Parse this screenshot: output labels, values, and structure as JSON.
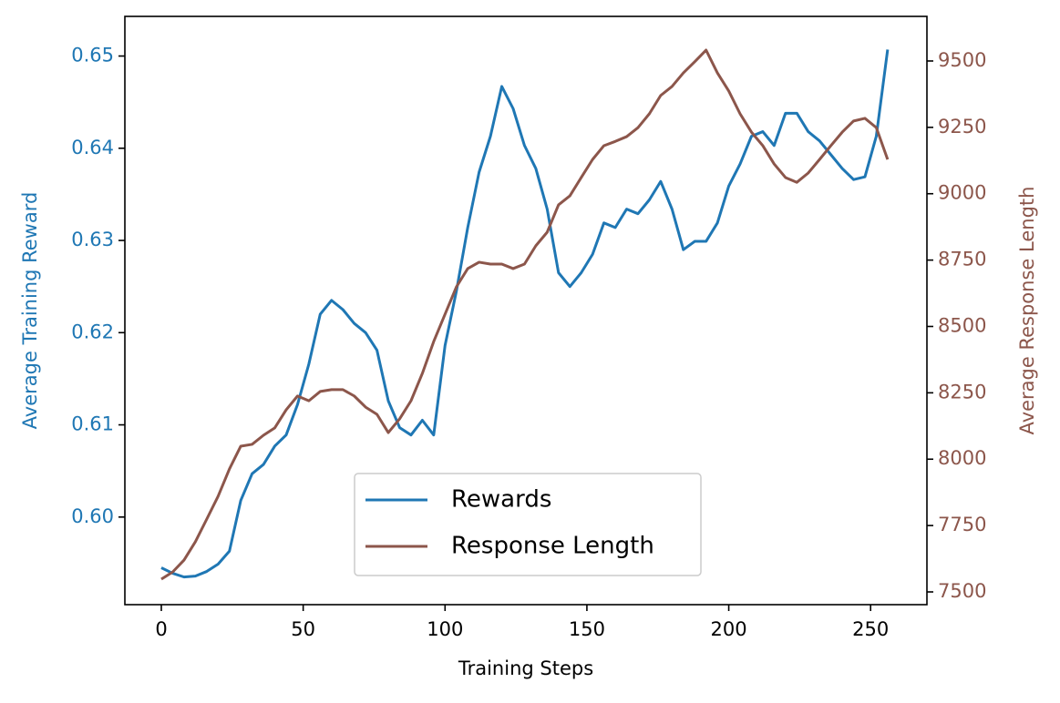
{
  "chart_data": {
    "type": "line",
    "x_label": "Training Steps",
    "y_label": "Average Training Reward",
    "y2_label": "Average Response Length",
    "x": [
      0,
      4,
      8,
      12,
      16,
      20,
      24,
      28,
      32,
      36,
      40,
      44,
      48,
      52,
      56,
      60,
      64,
      68,
      72,
      76,
      80,
      84,
      88,
      92,
      96,
      100,
      104,
      108,
      112,
      116,
      120,
      124,
      128,
      132,
      136,
      140,
      144,
      148,
      152,
      156,
      160,
      164,
      168,
      172,
      176,
      180,
      184,
      188,
      192,
      196,
      200,
      204,
      208,
      212,
      216,
      220,
      224,
      228,
      232,
      236,
      240,
      244,
      248,
      252,
      256
    ],
    "series": [
      {
        "name": "Rewards",
        "color": "#1f77b4",
        "axis": "y",
        "values": [
          0.5945,
          0.5939,
          0.5935,
          0.5936,
          0.5941,
          0.5949,
          0.5963,
          0.6018,
          0.6047,
          0.6057,
          0.6077,
          0.6089,
          0.6122,
          0.6166,
          0.622,
          0.6235,
          0.6225,
          0.621,
          0.62,
          0.6181,
          0.6126,
          0.6097,
          0.6089,
          0.6105,
          0.6089,
          0.6186,
          0.6245,
          0.6314,
          0.6374,
          0.6413,
          0.6467,
          0.6443,
          0.6403,
          0.6378,
          0.6334,
          0.6265,
          0.625,
          0.6265,
          0.6285,
          0.6319,
          0.6314,
          0.6334,
          0.6329,
          0.6344,
          0.6364,
          0.6334,
          0.629,
          0.6299,
          0.6299,
          0.6319,
          0.6359,
          0.6383,
          0.6413,
          0.6418,
          0.6403,
          0.6438,
          0.6438,
          0.6418,
          0.6408,
          0.6393,
          0.6378,
          0.6366,
          0.6369,
          0.6413,
          0.6507
        ]
      },
      {
        "name": "Response Length",
        "color": "#8c564b",
        "axis": "y2",
        "values": [
          7548,
          7575,
          7620,
          7689,
          7774,
          7860,
          7963,
          8049,
          8056,
          8090,
          8118,
          8186,
          8238,
          8220,
          8255,
          8262,
          8262,
          8238,
          8196,
          8169,
          8100,
          8152,
          8220,
          8323,
          8443,
          8546,
          8649,
          8718,
          8742,
          8735,
          8735,
          8718,
          8735,
          8804,
          8855,
          8958,
          8992,
          9061,
          9129,
          9181,
          9197,
          9215,
          9249,
          9301,
          9370,
          9404,
          9455,
          9497,
          9541,
          9455,
          9387,
          9301,
          9232,
          9181,
          9112,
          9061,
          9043,
          9078,
          9129,
          9181,
          9232,
          9274,
          9284,
          9249,
          9129
        ]
      }
    ],
    "xlim": [
      -12.85,
      269.85
    ],
    "xticks": [
      0,
      50,
      100,
      150,
      200,
      250
    ],
    "ylim": [
      0.5905,
      0.6543
    ],
    "yticks": [
      {
        "value": 0.6,
        "label": "0.60"
      },
      0.61,
      0.62,
      0.63,
      0.64,
      0.65
    ],
    "y2lim": [
      7452,
      9668
    ],
    "y2ticks": [
      7500,
      7750,
      8000,
      8250,
      8500,
      8750,
      9000,
      9250,
      9500
    ],
    "legend": "lower center",
    "grid": false
  }
}
